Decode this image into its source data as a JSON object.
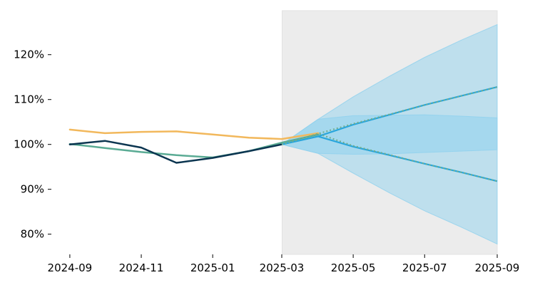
{
  "chart_data": {
    "type": "line",
    "title": "",
    "xlabel": "",
    "ylabel": "",
    "x_ticks": [
      "2024-09",
      "2024-11",
      "2025-01",
      "2025-03",
      "2025-05",
      "2025-07",
      "2025-09"
    ],
    "y_ticks": [
      "80%",
      "90%",
      "100%",
      "110%",
      "120%"
    ],
    "y_tick_values": [
      80,
      90,
      100,
      110,
      120
    ],
    "xlim": [
      "2024-08-15",
      "2025-09-15"
    ],
    "ylim": [
      75.5,
      129.8
    ],
    "grid": false,
    "legend": "none",
    "forecast_region": {
      "start": "2025-03-01",
      "end": "2025-09-01",
      "color": "#ececec"
    },
    "series": [
      {
        "color": "#f2b85c",
        "x": [
          "2024-09-01",
          "2024-10-01",
          "2024-11-01",
          "2024-12-01",
          "2025-01-01",
          "2025-02-01",
          "2025-03-01",
          "2025-04-01"
        ],
        "values": [
          103.3,
          102.5,
          102.8,
          102.9,
          102.2,
          101.5,
          101.2,
          102.5
        ]
      },
      {
        "color": "#5aab94",
        "x": [
          "2024-09-01",
          "2024-10-01",
          "2024-11-01",
          "2024-12-01",
          "2025-01-01",
          "2025-02-01",
          "2025-03-01",
          "2025-04-01"
        ],
        "values": [
          100.1,
          99.2,
          98.3,
          97.6,
          97.1,
          98.5,
          100.4,
          102.2
        ]
      },
      {
        "color": "#0b3550",
        "x": [
          "2024-09-01",
          "2024-10-01",
          "2024-11-01",
          "2024-12-01",
          "2025-01-01",
          "2025-02-01",
          "2025-03-01"
        ],
        "values": [
          100.0,
          100.8,
          99.3,
          95.9,
          97.0,
          98.5,
          100.0
        ]
      }
    ],
    "forecast": {
      "color": "#29a6dc",
      "band_color": "#8fd1ee",
      "x": [
        "2025-03-01",
        "2025-04-01",
        "2025-05-01",
        "2025-06-01",
        "2025-07-01",
        "2025-08-01",
        "2025-09-01"
      ],
      "upper_path": [
        100.0,
        101.8,
        104.4,
        106.6,
        108.8,
        110.8,
        112.8
      ],
      "lower_path": [
        100.0,
        101.8,
        99.5,
        97.6,
        95.7,
        93.8,
        91.8
      ],
      "inner_band_upper": [
        100.0,
        105.6,
        106.4,
        106.5,
        106.6,
        106.3,
        105.9
      ],
      "inner_band_lower": [
        100.0,
        98.0,
        97.8,
        97.9,
        98.2,
        98.5,
        98.8
      ],
      "outer_band_upper": [
        100.0,
        105.6,
        110.6,
        115.2,
        119.4,
        123.2,
        126.7
      ],
      "outer_band_lower": [
        100.0,
        98.0,
        93.6,
        89.2,
        85.2,
        81.6,
        77.8
      ],
      "dotted_upper": [
        100.0,
        102.4,
        104.6,
        106.7,
        108.8,
        110.8,
        112.8
      ],
      "dotted_lower": [
        100.0,
        102.4,
        99.7,
        97.7,
        95.7,
        93.8,
        91.8
      ]
    }
  }
}
